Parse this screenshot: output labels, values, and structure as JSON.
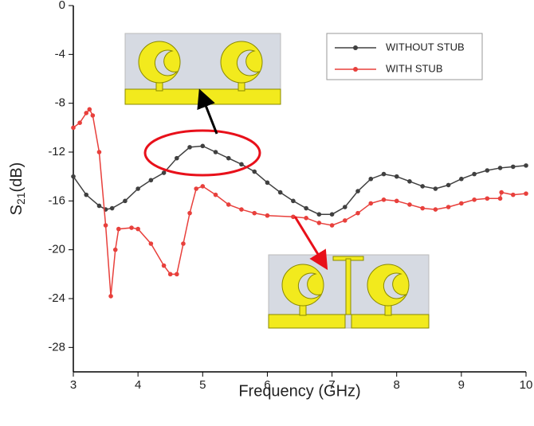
{
  "chart_data": {
    "type": "line",
    "x_label": "Frequency (GHz)",
    "y_label": [
      "S",
      "21",
      "(dB)"
    ],
    "xlim": [
      3,
      10
    ],
    "xticks": [
      3,
      4,
      5,
      6,
      7,
      8,
      9,
      10
    ],
    "ylim": [
      -30,
      0
    ],
    "yticks": [
      0,
      -4,
      -8,
      -12,
      -16,
      -20,
      -24,
      -28
    ],
    "legend": "upper right",
    "series": [
      {
        "name": "WITHOUT STUB",
        "color": "#404040",
        "x": [
          3.0,
          3.2,
          3.4,
          3.5,
          3.6,
          3.8,
          4.0,
          4.2,
          4.4,
          4.6,
          4.8,
          5.0,
          5.2,
          5.4,
          5.6,
          5.8,
          6.0,
          6.2,
          6.4,
          6.6,
          6.8,
          7.0,
          7.2,
          7.4,
          7.6,
          7.8,
          8.0,
          8.2,
          8.4,
          8.6,
          8.8,
          9.0,
          9.2,
          9.4,
          9.6,
          9.8,
          10.0
        ],
        "values": [
          -14,
          -15.5,
          -16.4,
          -16.7,
          -16.6,
          -16,
          -15,
          -14.3,
          -13.7,
          -12.5,
          -11.6,
          -11.5,
          -12,
          -12.5,
          -13,
          -13.6,
          -14.5,
          -15.3,
          -16,
          -16.6,
          -17.1,
          -17.1,
          -16.5,
          -15.2,
          -14.2,
          -13.8,
          -14,
          -14.4,
          -14.8,
          -15,
          -14.7,
          -14.2,
          -13.8,
          -13.5,
          -13.3,
          -13.2,
          -13.1
        ]
      },
      {
        "name": "WITH STUB",
        "color": "#e8403c",
        "x": [
          3.0,
          3.1,
          3.2,
          3.25,
          3.3,
          3.4,
          3.5,
          3.58,
          3.65,
          3.7,
          3.9,
          4.0,
          4.2,
          4.4,
          4.5,
          4.6,
          4.7,
          4.8,
          4.9,
          5.0,
          5.2,
          5.4,
          5.6,
          5.8,
          6.0,
          6.4,
          6.6,
          6.8,
          7.0,
          7.2,
          7.4,
          7.6,
          7.8,
          8.0,
          8.2,
          8.4,
          8.6,
          8.8,
          9.0,
          9.2,
          9.4,
          9.6,
          9.62,
          9.8,
          10.0
        ],
        "values": [
          -10,
          -9.6,
          -8.8,
          -8.5,
          -9,
          -12,
          -18,
          -23.8,
          -20,
          -18.3,
          -18.2,
          -18.3,
          -19.5,
          -21.3,
          -22,
          -22,
          -19.5,
          -17,
          -15,
          -14.8,
          -15.5,
          -16.3,
          -16.7,
          -17,
          -17.2,
          -17.3,
          -17.4,
          -17.8,
          -18,
          -17.6,
          -17,
          -16.2,
          -15.9,
          -16,
          -16.3,
          -16.6,
          -16.7,
          -16.5,
          -16.2,
          -15.9,
          -15.8,
          -15.8,
          -15.3,
          -15.5,
          -15.4
        ]
      }
    ]
  }
}
